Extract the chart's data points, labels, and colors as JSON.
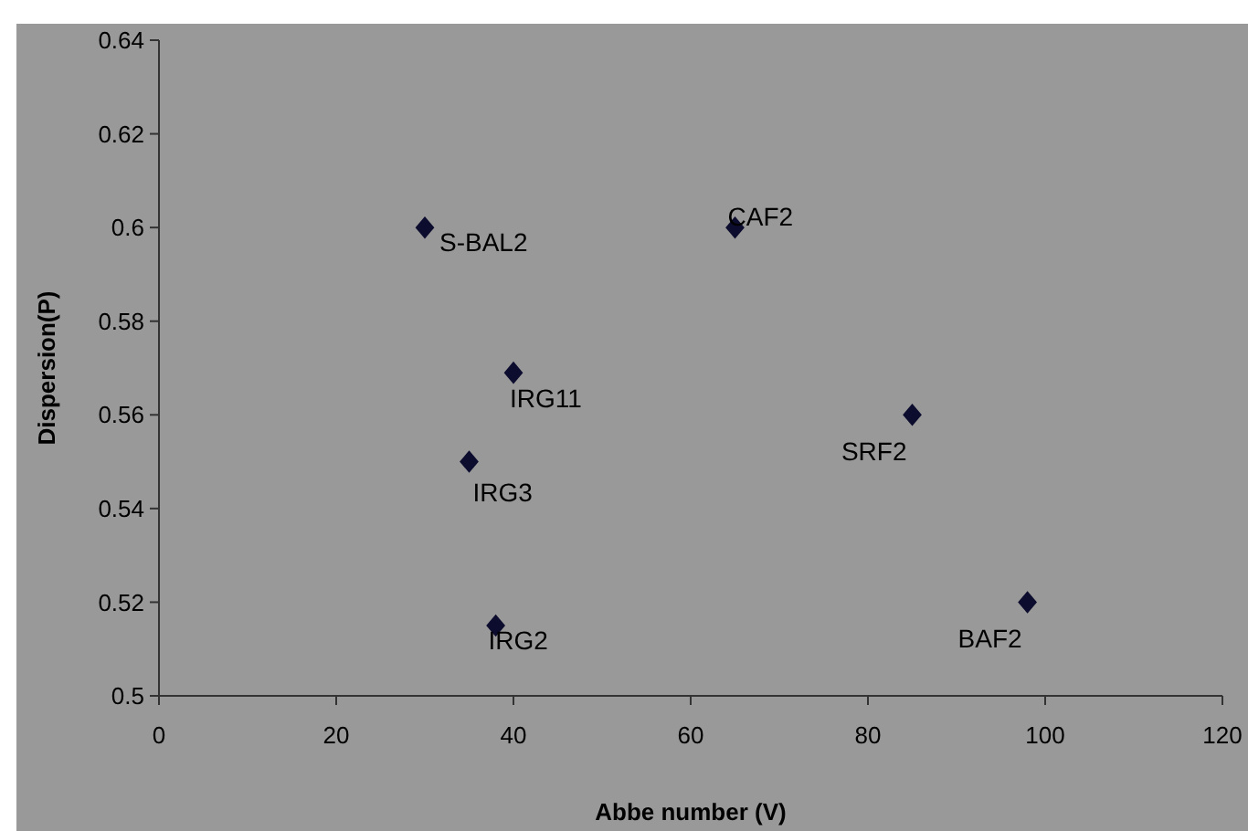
{
  "chart_data": {
    "type": "scatter",
    "xlabel": "Abbe number (V)",
    "ylabel": "Dispersion(P)",
    "x": [
      30,
      65,
      40,
      35,
      38,
      85,
      98
    ],
    "series": [
      {
        "color": "#0c0c2e",
        "values": [
          0.6,
          0.6,
          0.569,
          0.55,
          0.515,
          0.56,
          0.52
        ]
      }
    ],
    "annotations": [
      {
        "text": "S-BAL2",
        "x": 30,
        "y": 0.6
      },
      {
        "text": "CAF2",
        "x": 65,
        "y": 0.6
      },
      {
        "text": "IRG11",
        "x": 40,
        "y": 0.569
      },
      {
        "text": "IRG3",
        "x": 35,
        "y": 0.55
      },
      {
        "text": "IRG2",
        "x": 38,
        "y": 0.515
      },
      {
        "text": "SRF2",
        "x": 85,
        "y": 0.56
      },
      {
        "text": "BAF2",
        "x": 98,
        "y": 0.52
      }
    ],
    "xlim": [
      0,
      120
    ],
    "xticks": [
      0,
      20,
      40,
      60,
      80,
      100,
      120
    ],
    "ylim": [
      0.5,
      0.64
    ],
    "yticks": [
      0.5,
      0.52,
      0.54,
      0.56,
      0.58,
      0.6,
      0.62,
      0.64
    ],
    "marker": "diamond",
    "grid": false
  }
}
